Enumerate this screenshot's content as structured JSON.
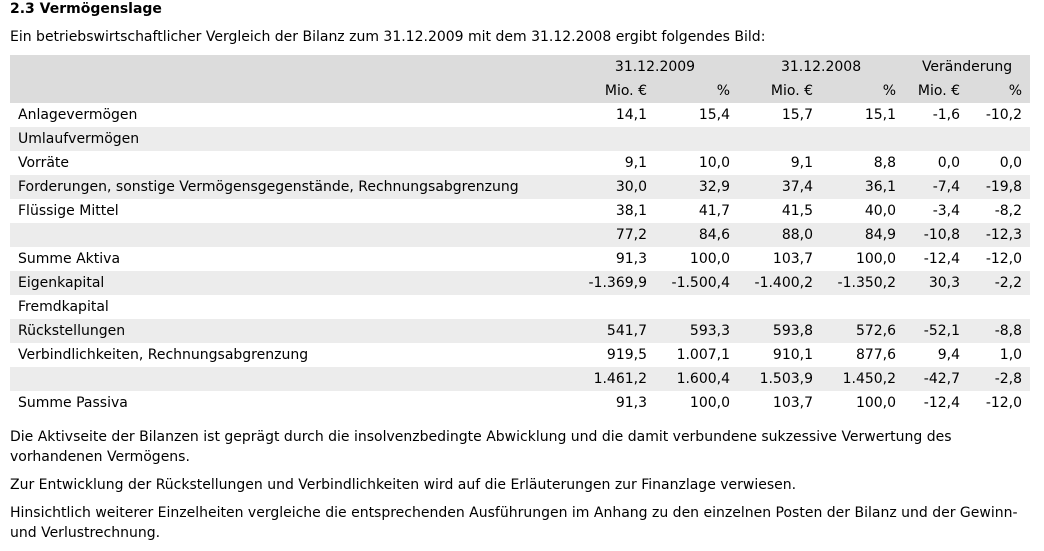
{
  "header": {
    "title": "2.3 Vermögenslage",
    "intro": "Ein betriebswirtschaftlicher Vergleich der Bilanz zum 31.12.2009 mit dem 31.12.2008 ergibt folgendes Bild:"
  },
  "table": {
    "groups": [
      "31.12.2009",
      "31.12.2008",
      "Veränderung"
    ],
    "units": [
      "Mio. €",
      "%",
      "Mio. €",
      "%",
      "Mio. €",
      "%"
    ],
    "rows": [
      [
        "Anlagevermögen",
        "14,1",
        "15,4",
        "15,7",
        "15,1",
        "-1,6",
        "-10,2"
      ],
      [
        "Umlaufvermögen"
      ],
      [
        "Vorräte",
        "9,1",
        "10,0",
        "9,1",
        "8,8",
        "0,0",
        "0,0"
      ],
      [
        "Forderungen, sonstige Vermögensgegenstände, Rechnungsabgrenzung",
        "30,0",
        "32,9",
        "37,4",
        "36,1",
        "-7,4",
        "-19,8"
      ],
      [
        "Flüssige Mittel",
        "38,1",
        "41,7",
        "41,5",
        "40,0",
        "-3,4",
        "-8,2"
      ],
      [
        null,
        "77,2",
        "84,6",
        "88,0",
        "84,9",
        "-10,8",
        "-12,3"
      ],
      [
        "Summe Aktiva",
        "91,3",
        "100,0",
        "103,7",
        "100,0",
        "-12,4",
        "-12,0"
      ],
      [
        "Eigenkapital",
        "-1.369,9",
        "-1.500,4",
        "-1.400,2",
        "-1.350,2",
        "30,3",
        "-2,2"
      ],
      [
        "Fremdkapital"
      ],
      [
        "Rückstellungen",
        "541,7",
        "593,3",
        "593,8",
        "572,6",
        "-52,1",
        "-8,8"
      ],
      [
        "Verbindlichkeiten, Rechnungsabgrenzung",
        "919,5",
        "1.007,1",
        "910,1",
        "877,6",
        "9,4",
        "1,0"
      ],
      [
        null,
        "1.461,2",
        "1.600,4",
        "1.503,9",
        "1.450,2",
        "-42,7",
        "-2,8"
      ],
      [
        "Summe Passiva",
        "91,3",
        "100,0",
        "103,7",
        "100,0",
        "-12,4",
        "-12,0"
      ]
    ]
  },
  "paragraphs": [
    "Die Aktivseite der Bilanzen ist geprägt durch die insolvenzbedingte Abwicklung und die damit verbundene sukzessive Verwertung des vorhandenen Vermögens.",
    "Zur Entwicklung der Rückstellungen und Verbindlichkeiten wird auf die Erläuterungen zur Finanzlage verwiesen.",
    "Hinsichtlich weiterer Einzelheiten vergleiche die entsprechenden Ausführungen im Anhang zu den einzelnen Posten der Bilanz und der Gewinn- und Verlustrechnung."
  ]
}
